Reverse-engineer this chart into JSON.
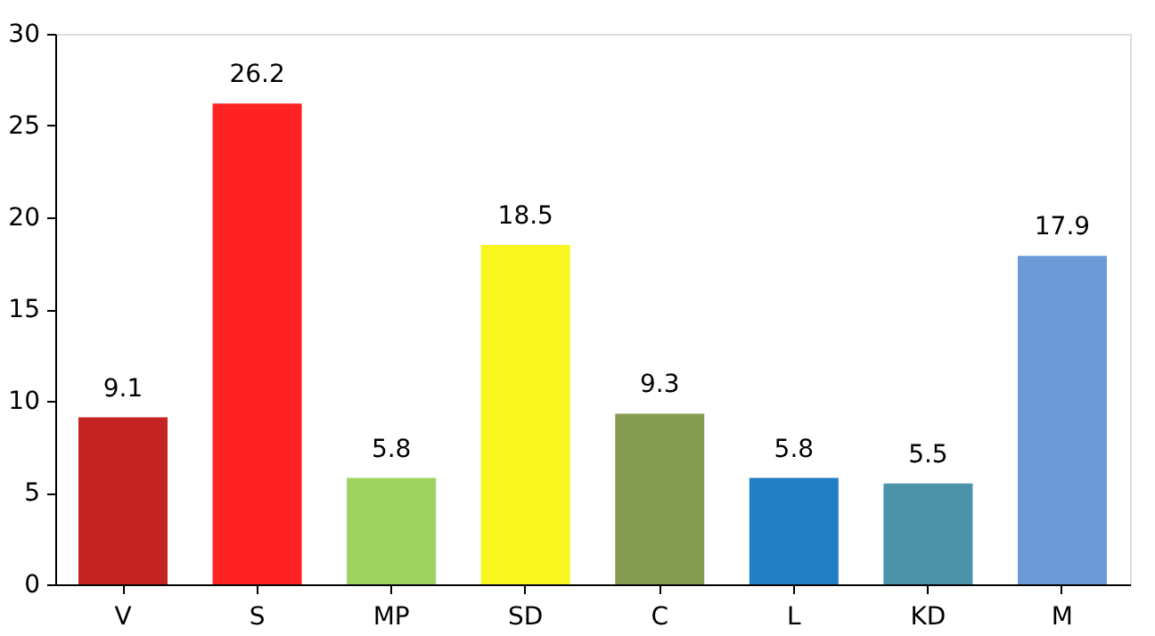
{
  "chart_data": {
    "type": "bar",
    "categories": [
      "V",
      "S",
      "MP",
      "SD",
      "C",
      "L",
      "KD",
      "M"
    ],
    "values": [
      9.1,
      26.2,
      5.8,
      18.5,
      9.3,
      5.8,
      5.5,
      17.9
    ],
    "colors": [
      "#c52222",
      "#fe2222",
      "#9ed361",
      "#f9f51f",
      "#859c51",
      "#217fc5",
      "#4b93a8",
      "#6b9bd9"
    ],
    "ylim": [
      0,
      30
    ],
    "yticks": [
      0,
      5,
      10,
      15,
      20,
      25,
      30
    ],
    "data_labels": true,
    "grid": false,
    "legend": false
  }
}
